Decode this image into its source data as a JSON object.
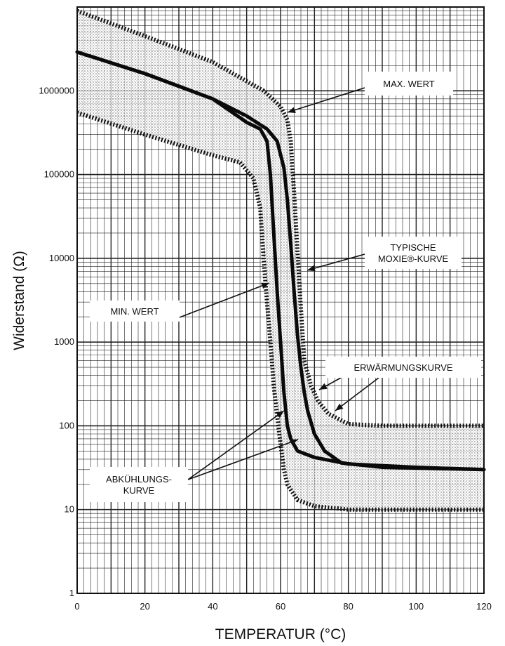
{
  "chart_data": {
    "type": "line",
    "title": "",
    "xlabel": "TEMPERATUR (°C)",
    "ylabel": "Widerstand (Ω)",
    "xlim": [
      0,
      120
    ],
    "ylim": [
      1,
      10000000
    ],
    "y_scale": "log",
    "grid": true,
    "x_ticks": [
      "0",
      "20",
      "40",
      "60",
      "80",
      "100",
      "120"
    ],
    "y_ticks": [
      {
        "value": 1,
        "label": "1"
      },
      {
        "value": 10,
        "label": "10"
      },
      {
        "value": 100,
        "label": "100"
      },
      {
        "value": 1000,
        "label": "1000"
      },
      {
        "value": 10000,
        "label": "10000"
      },
      {
        "value": 100000,
        "label": "100000"
      },
      {
        "value": 1000000,
        "label": "1000000"
      }
    ],
    "band": {
      "upper": [
        [
          0,
          9000000
        ],
        [
          20,
          4500000
        ],
        [
          40,
          2200000
        ],
        [
          55,
          1000000
        ],
        [
          60,
          650000
        ],
        [
          62,
          450000
        ],
        [
          63,
          250000
        ],
        [
          64,
          60000
        ],
        [
          65,
          12000
        ],
        [
          66,
          2500
        ],
        [
          67,
          600
        ],
        [
          69,
          300
        ],
        [
          71,
          200
        ],
        [
          74,
          140
        ],
        [
          80,
          105
        ],
        [
          90,
          100
        ],
        [
          100,
          100
        ],
        [
          120,
          100
        ]
      ],
      "lower": [
        [
          0,
          550000
        ],
        [
          20,
          300000
        ],
        [
          40,
          170000
        ],
        [
          48,
          140000
        ],
        [
          52,
          90000
        ],
        [
          54,
          40000
        ],
        [
          55,
          10000
        ],
        [
          56,
          3000
        ],
        [
          57,
          1000
        ],
        [
          58,
          300
        ],
        [
          59,
          130
        ],
        [
          60,
          60
        ],
        [
          61,
          30
        ],
        [
          62,
          20
        ],
        [
          65,
          13
        ],
        [
          70,
          11
        ],
        [
          80,
          10
        ],
        [
          100,
          10
        ],
        [
          120,
          10
        ]
      ]
    },
    "series": [
      {
        "data": [
          [
            0,
            2900000
          ],
          [
            20,
            1600000
          ],
          [
            40,
            800000
          ],
          [
            50,
            420000
          ],
          [
            54,
            350000
          ],
          [
            56,
            250000
          ],
          [
            57,
            100000
          ],
          [
            58,
            20000
          ],
          [
            59,
            4000
          ],
          [
            60,
            1000
          ],
          [
            61,
            250
          ],
          [
            62,
            100
          ],
          [
            63,
            70
          ],
          [
            65,
            50
          ],
          [
            70,
            42
          ],
          [
            80,
            35
          ],
          [
            100,
            32
          ],
          [
            120,
            30
          ]
        ]
      },
      {
        "data": [
          [
            0,
            2900000
          ],
          [
            20,
            1600000
          ],
          [
            40,
            800000
          ],
          [
            50,
            500000
          ],
          [
            56,
            350000
          ],
          [
            59,
            250000
          ],
          [
            61,
            120000
          ],
          [
            62,
            50000
          ],
          [
            63,
            15000
          ],
          [
            64,
            4000
          ],
          [
            65,
            1200
          ],
          [
            66,
            500
          ],
          [
            67,
            250
          ],
          [
            68,
            150
          ],
          [
            70,
            80
          ],
          [
            73,
            50
          ],
          [
            78,
            36
          ],
          [
            90,
            32
          ],
          [
            120,
            30
          ]
        ]
      }
    ],
    "annotations": [
      {
        "lines": [
          "MAX. WERT"
        ],
        "x": 62,
        "y": 600000
      },
      {
        "lines": [
          "TYPISCHE",
          "MOXIE®-KURVE"
        ],
        "x": 65,
        "y": 6000
      },
      {
        "lines": [
          "MIN. WERT"
        ],
        "x": 56,
        "y": 5000
      },
      {
        "lines": [
          "ERWÄRMUNGSKURVE"
        ],
        "x": 69,
        "y": 300
      },
      {
        "lines": [
          "ABKÜHLUNGS-",
          "KURVE"
        ],
        "x": 58,
        "y": 150
      }
    ]
  }
}
